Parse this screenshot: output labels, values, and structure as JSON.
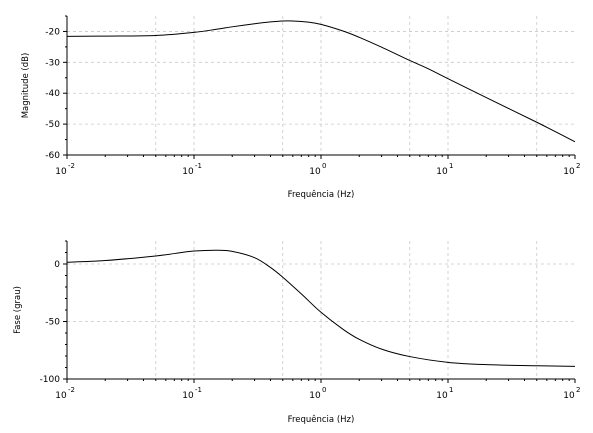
{
  "chart_data": [
    {
      "type": "line",
      "title": "",
      "xlabel": "Frequência (Hz)",
      "ylabel": "Magnitude (dB)",
      "x_scale": "log",
      "xlim": [
        0.01,
        100
      ],
      "ylim": [
        -60,
        -15
      ],
      "x_ticks": [
        {
          "base": "10",
          "exp": "-2",
          "value": 0.01
        },
        {
          "base": "10",
          "exp": "-1",
          "value": 0.1
        },
        {
          "base": "10",
          "exp": "0",
          "value": 1
        },
        {
          "base": "10",
          "exp": "1",
          "value": 10
        },
        {
          "base": "10",
          "exp": "2",
          "value": 100
        }
      ],
      "y_ticks": [
        {
          "label": "-20",
          "value": -20
        },
        {
          "label": "-30",
          "value": -30
        },
        {
          "label": "-40",
          "value": -40
        },
        {
          "label": "-50",
          "value": -50
        },
        {
          "label": "-60",
          "value": -60
        }
      ],
      "grid": true,
      "series": [
        {
          "x": [
            0.01,
            0.02,
            0.05,
            0.1,
            0.15,
            0.2,
            0.3,
            0.4,
            0.5,
            0.6,
            0.8,
            1,
            1.5,
            2,
            3,
            5,
            7,
            10,
            20,
            50,
            100
          ],
          "y": [
            -21.6,
            -21.5,
            -21.3,
            -20.3,
            -19.3,
            -18.5,
            -17.5,
            -16.9,
            -16.6,
            -16.6,
            -17.0,
            -17.7,
            -19.9,
            -21.9,
            -25.1,
            -29.4,
            -32.1,
            -35.3,
            -41.4,
            -49.4,
            -55.7
          ]
        }
      ]
    },
    {
      "type": "line",
      "title": "",
      "xlabel": "Frequência (Hz)",
      "ylabel": "Fase (grau)",
      "x_scale": "log",
      "xlim": [
        0.01,
        100
      ],
      "ylim": [
        -100,
        20
      ],
      "x_ticks": [
        {
          "base": "10",
          "exp": "-2",
          "value": 0.01
        },
        {
          "base": "10",
          "exp": "-1",
          "value": 0.1
        },
        {
          "base": "10",
          "exp": "0",
          "value": 1
        },
        {
          "base": "10",
          "exp": "1",
          "value": 10
        },
        {
          "base": "10",
          "exp": "2",
          "value": 100
        }
      ],
      "y_ticks": [
        {
          "label": "0",
          "value": 0
        },
        {
          "label": "-50",
          "value": -50
        },
        {
          "label": "-100",
          "value": -100
        }
      ],
      "grid": true,
      "series": [
        {
          "x": [
            0.01,
            0.02,
            0.05,
            0.08,
            0.1,
            0.15,
            0.2,
            0.3,
            0.4,
            0.5,
            0.7,
            1,
            1.5,
            2,
            3,
            5,
            10,
            20,
            50,
            100
          ],
          "y": [
            1.5,
            3.0,
            7.0,
            10.0,
            11.3,
            12.0,
            11.0,
            5.5,
            -3.0,
            -11.5,
            -26.0,
            -42.0,
            -57.0,
            -65.5,
            -74.0,
            -80.5,
            -85.5,
            -87.5,
            -88.5,
            -89.0
          ]
        }
      ]
    }
  ]
}
